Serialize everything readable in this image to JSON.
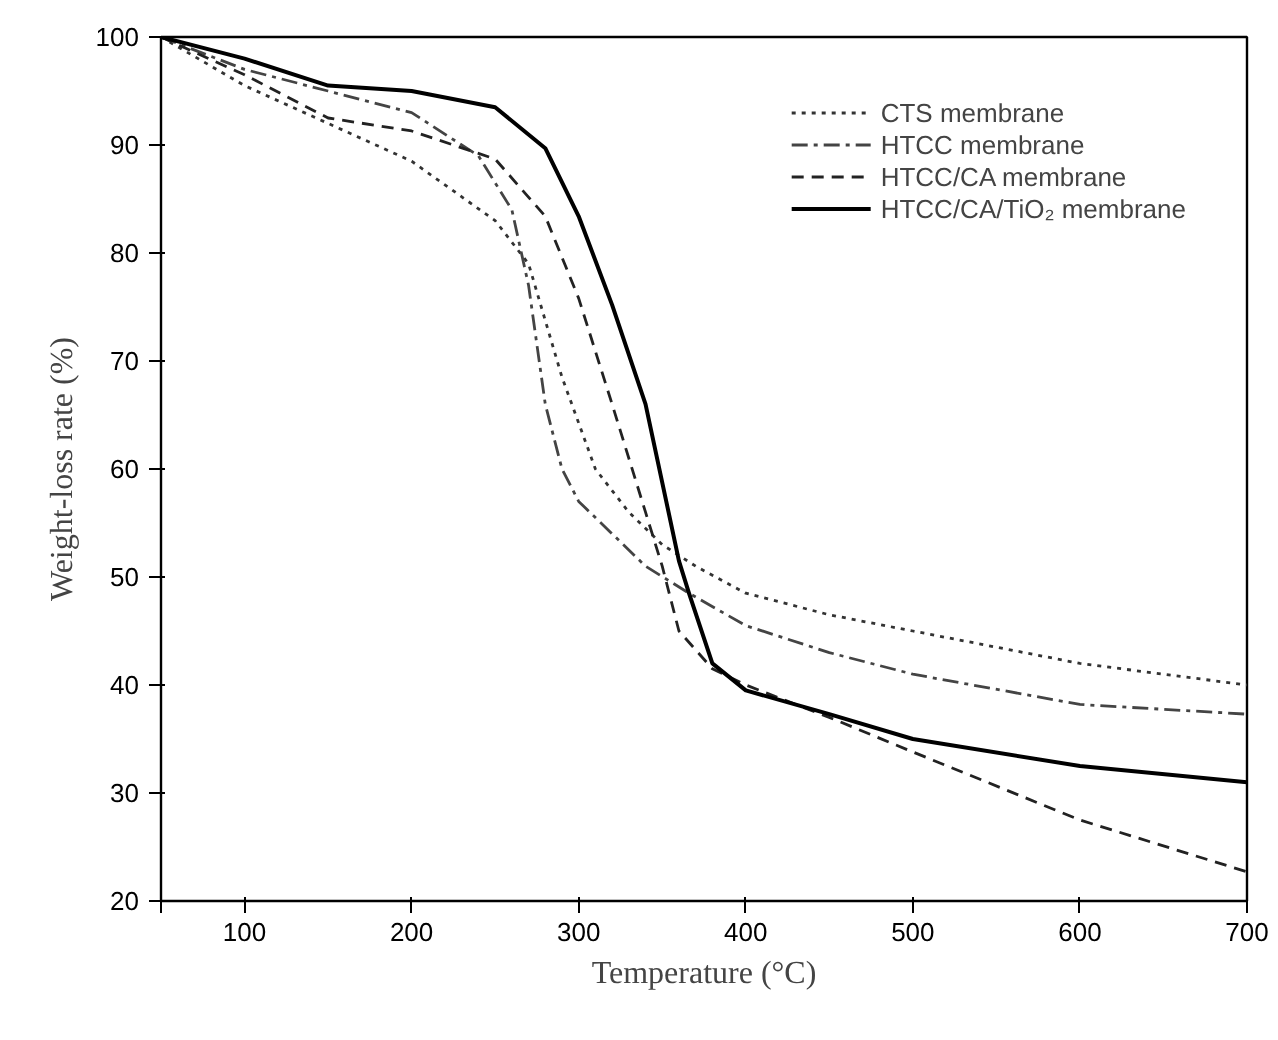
{
  "chart_data": {
    "type": "line",
    "xlabel": "Temperature (°C)",
    "ylabel": "Weight-loss rate (%)",
    "xlim": [
      50,
      700
    ],
    "ylim": [
      20,
      100
    ],
    "xticks": [
      {
        "value": 50,
        "label": null
      },
      100,
      200,
      300,
      400,
      500,
      600,
      700
    ],
    "yticks": [
      20,
      30,
      40,
      50,
      60,
      70,
      80,
      90,
      100
    ],
    "grid": false,
    "legend": "top right",
    "series": [
      {
        "name": "CTS membrane",
        "color": "#333333",
        "line_style": "dotted",
        "x": [
          50,
          100,
          150,
          200,
          250,
          270,
          290,
          310,
          330,
          350,
          370,
          400,
          450,
          500,
          600,
          700
        ],
        "values": [
          100,
          95.5,
          92,
          88.5,
          83,
          79,
          68.5,
          60,
          56,
          53,
          51,
          48.5,
          46.5,
          45,
          42,
          40
        ]
      },
      {
        "name": "HTCC membrane",
        "color": "#444444",
        "line_style": "dashdot",
        "x": [
          50,
          100,
          150,
          200,
          240,
          260,
          270,
          280,
          290,
          300,
          320,
          340,
          366,
          400,
          450,
          500,
          600,
          700
        ],
        "values": [
          100,
          97,
          95,
          93,
          89,
          84,
          77,
          66,
          60,
          57,
          54,
          51,
          48.5,
          45.5,
          43,
          41,
          38.2,
          37.3
        ]
      },
      {
        "name": "HTCC/CA membrane",
        "color": "#222222",
        "line_style": "dashed",
        "x": [
          50,
          100,
          150,
          200,
          250,
          280,
          300,
          320,
          340,
          350,
          360,
          380,
          400,
          450,
          500,
          600,
          700
        ],
        "values": [
          100,
          96.5,
          92.5,
          91.3,
          88.7,
          83.4,
          75.8,
          66,
          56,
          51,
          45,
          41.5,
          40,
          37,
          33.8,
          27.5,
          22.7
        ]
      },
      {
        "name": "HTCC/CA/TiO₂ membrane",
        "color": "#000000",
        "line_style": "solid",
        "x": [
          50,
          100,
          150,
          200,
          250,
          280,
          300,
          320,
          340,
          360,
          366,
          380,
          400,
          450,
          500,
          600,
          700
        ],
        "values": [
          100,
          98,
          95.5,
          95,
          93.5,
          89.7,
          83.4,
          75.2,
          66,
          51.5,
          48.5,
          42,
          39.5,
          37.3,
          35,
          32.5,
          31
        ]
      }
    ]
  }
}
